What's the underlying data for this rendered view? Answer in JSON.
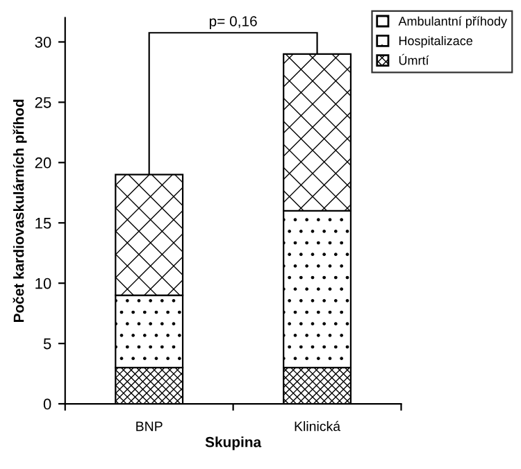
{
  "chart_data": {
    "type": "bar",
    "stacked": true,
    "xlabel": "Skupina",
    "ylabel": "Počet kardiovaskulárních příhod",
    "categories": [
      "BNP",
      "Klinická"
    ],
    "series": [
      {
        "name": "Úmrtí",
        "color": "#000000",
        "values": [
          3,
          3
        ]
      },
      {
        "name": "Hospitalizace",
        "color": "#000000",
        "values": [
          6,
          13
        ]
      },
      {
        "name": "Ambulantní příhody",
        "color": "#000000",
        "values": [
          10,
          13
        ]
      }
    ],
    "ylim": [
      0,
      32
    ],
    "yticks": [
      0,
      5,
      10,
      15,
      20,
      25,
      30
    ],
    "grid": false,
    "legend": "top right",
    "annotations": [
      "p= 0,16"
    ]
  }
}
